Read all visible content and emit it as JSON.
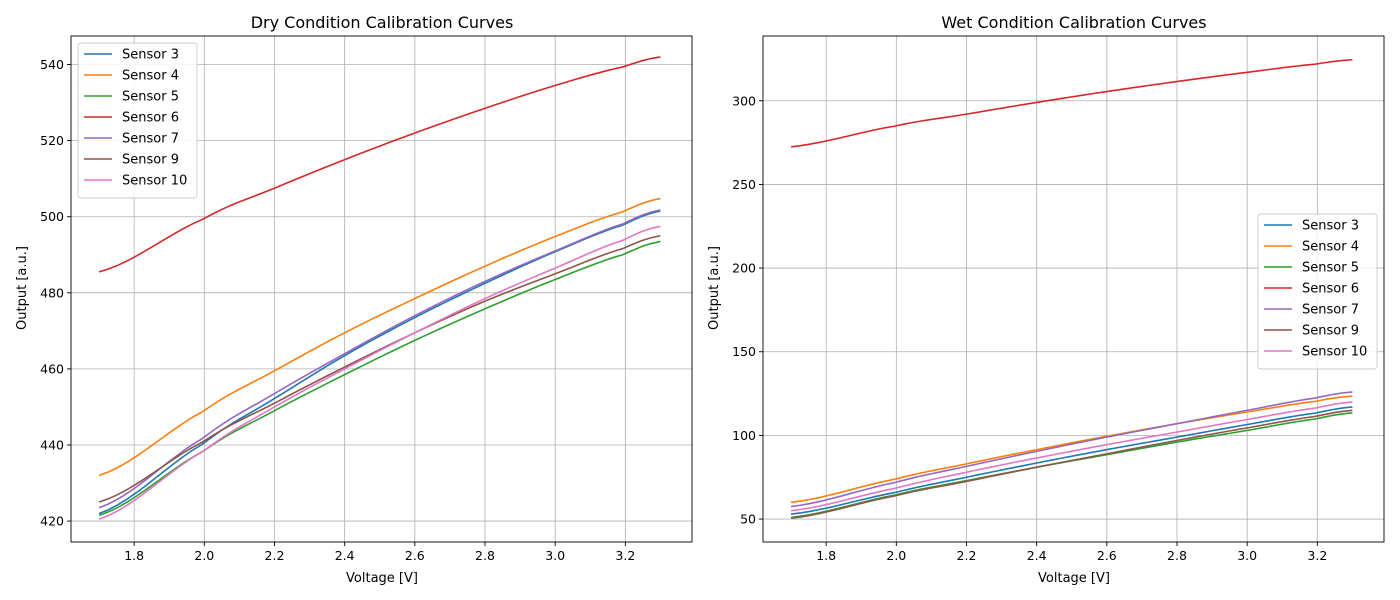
{
  "chart_data": [
    {
      "type": "line",
      "title": "Dry Condition Calibration Curves",
      "xlabel": "Voltage [V]",
      "ylabel": "Output [a.u.]",
      "xlim": [
        1.62,
        3.39
      ],
      "ylim": [
        414.5,
        547.5
      ],
      "xticks": [
        1.8,
        2.0,
        2.2,
        2.4,
        2.6,
        2.8,
        3.0,
        3.2
      ],
      "yticks": [
        420,
        440,
        460,
        480,
        500,
        520,
        540
      ],
      "grid": true,
      "legend_position": "upper-left",
      "x": [
        1.7,
        2.0,
        2.2,
        2.4,
        2.6,
        2.8,
        3.0,
        3.2,
        3.3
      ],
      "series": [
        {
          "name": "Sensor 3",
          "color": "#1f77b4",
          "values": [
            422.0,
            440.5,
            452.2,
            463.5,
            473.5,
            482.5,
            490.8,
            498.0,
            501.5
          ]
        },
        {
          "name": "Sensor 4",
          "color": "#ff7f0e",
          "values": [
            432.0,
            449.0,
            459.5,
            469.5,
            478.5,
            487.0,
            494.8,
            501.5,
            504.8
          ]
        },
        {
          "name": "Sensor 5",
          "color": "#2ca02c",
          "values": [
            421.5,
            438.5,
            449.0,
            458.5,
            467.5,
            475.8,
            483.5,
            490.2,
            493.5
          ]
        },
        {
          "name": "Sensor 6",
          "color": "#d62728",
          "values": [
            485.5,
            499.5,
            507.5,
            515.0,
            522.0,
            528.5,
            534.5,
            539.5,
            542.0
          ]
        },
        {
          "name": "Sensor 7",
          "color": "#9467bd",
          "values": [
            423.5,
            442.0,
            453.5,
            464.0,
            474.0,
            483.0,
            491.0,
            498.3,
            501.8
          ]
        },
        {
          "name": "Sensor 9",
          "color": "#8c564b",
          "values": [
            425.0,
            441.0,
            451.0,
            460.5,
            469.5,
            477.8,
            485.0,
            491.8,
            495.0
          ]
        },
        {
          "name": "Sensor 10",
          "color": "#e377c2",
          "values": [
            420.5,
            438.5,
            450.0,
            460.0,
            469.5,
            478.5,
            486.5,
            494.0,
            497.5
          ]
        }
      ]
    },
    {
      "type": "line",
      "title": "Wet Condition Calibration Curves",
      "xlabel": "Voltage [V]",
      "ylabel": "Output [a.u.]",
      "xlim": [
        1.62,
        3.39
      ],
      "ylim": [
        36.3,
        338.7
      ],
      "xticks": [
        1.8,
        2.0,
        2.2,
        2.4,
        2.6,
        2.8,
        3.0,
        3.2
      ],
      "yticks": [
        50,
        100,
        150,
        200,
        250,
        300
      ],
      "grid": true,
      "legend_position": "center-right",
      "x": [
        1.7,
        2.0,
        2.2,
        2.4,
        2.6,
        2.8,
        3.0,
        3.2,
        3.3
      ],
      "series": [
        {
          "name": "Sensor 3",
          "color": "#1f77b4",
          "values": [
            53.0,
            66.0,
            75.0,
            83.5,
            91.5,
            99.0,
            106.5,
            113.5,
            117.0
          ]
        },
        {
          "name": "Sensor 4",
          "color": "#ff7f0e",
          "values": [
            60.0,
            74.0,
            83.0,
            91.5,
            99.5,
            107.0,
            114.0,
            120.5,
            123.5
          ]
        },
        {
          "name": "Sensor 5",
          "color": "#2ca02c",
          "values": [
            51.0,
            64.5,
            73.0,
            81.0,
            88.5,
            96.0,
            103.0,
            110.0,
            113.5
          ]
        },
        {
          "name": "Sensor 6",
          "color": "#d62728",
          "values": [
            272.5,
            285.0,
            292.0,
            299.0,
            305.5,
            311.5,
            317.0,
            322.0,
            324.5
          ]
        },
        {
          "name": "Sensor 7",
          "color": "#9467bd",
          "values": [
            57.5,
            72.0,
            81.5,
            90.5,
            99.0,
            107.0,
            115.0,
            122.5,
            126.0
          ]
        },
        {
          "name": "Sensor 9",
          "color": "#8c564b",
          "values": [
            50.5,
            64.0,
            72.5,
            81.0,
            89.0,
            97.0,
            104.5,
            111.5,
            115.0
          ]
        },
        {
          "name": "Sensor 10",
          "color": "#e377c2",
          "values": [
            55.0,
            68.5,
            78.0,
            86.5,
            94.5,
            102.0,
            109.5,
            116.5,
            120.0
          ]
        }
      ]
    }
  ]
}
